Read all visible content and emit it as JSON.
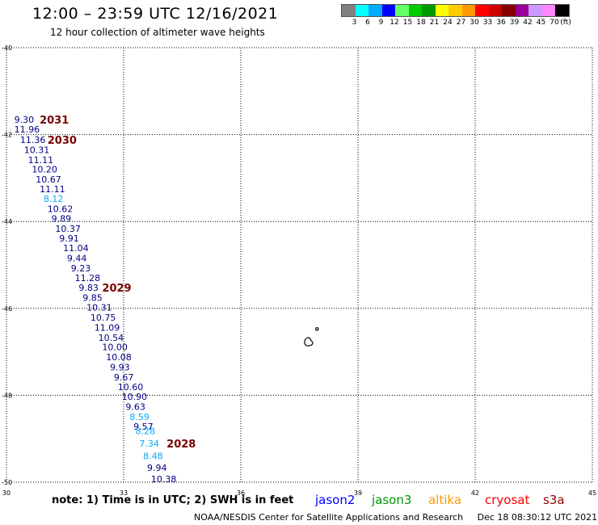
{
  "header": {
    "title": "12:00 – 23:59 UTC 12/16/2021",
    "subtitle": "12 hour collection of altimeter wave heights"
  },
  "color_scale": {
    "unit": "(ft)",
    "colors": [
      "#808080",
      "#00ffff",
      "#00aaff",
      "#0000ff",
      "#66ff66",
      "#00cc00",
      "#009900",
      "#ffff00",
      "#ffcc00",
      "#ff9900",
      "#ff0000",
      "#cc0000",
      "#880000",
      "#990099",
      "#cc99ff",
      "#ff88ff",
      "#000000"
    ],
    "labels": [
      "3",
      "6",
      "9",
      "12",
      "15",
      "18",
      "21",
      "24",
      "27",
      "30",
      "33",
      "36",
      "39",
      "42",
      "45",
      "70"
    ]
  },
  "map": {
    "lat_labels": [
      "-40",
      "-42",
      "-44",
      "-46",
      "-48",
      "-50"
    ],
    "lon_labels": [
      "30",
      "33",
      "36",
      "39",
      "42",
      "45"
    ],
    "pass_times": [
      "2031",
      "2030",
      "2029",
      "2028"
    ]
  },
  "chart_data": {
    "type": "scatter",
    "title": "12:00 – 23:59 UTC 12/16/2021",
    "subtitle": "12 hour collection of altimeter wave heights",
    "xlim": [
      30,
      45
    ],
    "ylim": [
      -50,
      -40
    ],
    "xticks": [
      30,
      33,
      36,
      39,
      42,
      45
    ],
    "yticks": [
      -40,
      -42,
      -44,
      -46,
      -48,
      -50
    ],
    "grid": true,
    "series": [
      {
        "name": "jason2",
        "points": [
          {
            "lon": 30.2,
            "lat": -41.65,
            "swh": "9.30",
            "color": "#000080"
          },
          {
            "lon": 30.2,
            "lat": -41.88,
            "swh": "11.96",
            "color": "#000080"
          },
          {
            "lon": 30.35,
            "lat": -42.12,
            "swh": "11.36",
            "color": "#000080"
          },
          {
            "lon": 30.45,
            "lat": -42.35,
            "swh": "10.31",
            "color": "#000080"
          },
          {
            "lon": 30.55,
            "lat": -42.58,
            "swh": "11.11",
            "color": "#000080"
          },
          {
            "lon": 30.65,
            "lat": -42.8,
            "swh": "10.20",
            "color": "#000080"
          },
          {
            "lon": 30.75,
            "lat": -43.03,
            "swh": "10.67",
            "color": "#000080"
          },
          {
            "lon": 30.85,
            "lat": -43.25,
            "swh": "11.11",
            "color": "#000080"
          },
          {
            "lon": 30.95,
            "lat": -43.48,
            "swh": "8.12",
            "color": "#00aaff"
          },
          {
            "lon": 31.05,
            "lat": -43.71,
            "swh": "10.62",
            "color": "#000080"
          },
          {
            "lon": 31.15,
            "lat": -43.93,
            "swh": "9.89",
            "color": "#000080"
          },
          {
            "lon": 31.25,
            "lat": -44.16,
            "swh": "10.37",
            "color": "#000080"
          },
          {
            "lon": 31.35,
            "lat": -44.39,
            "swh": "9.91",
            "color": "#000080"
          },
          {
            "lon": 31.45,
            "lat": -44.61,
            "swh": "11.04",
            "color": "#000080"
          },
          {
            "lon": 31.55,
            "lat": -44.84,
            "swh": "9.44",
            "color": "#000080"
          },
          {
            "lon": 31.65,
            "lat": -45.07,
            "swh": "9.23",
            "color": "#000080"
          },
          {
            "lon": 31.75,
            "lat": -45.3,
            "swh": "11.28",
            "color": "#000080"
          },
          {
            "lon": 31.85,
            "lat": -45.52,
            "swh": "9.83",
            "color": "#000080"
          },
          {
            "lon": 31.95,
            "lat": -45.75,
            "swh": "9.85",
            "color": "#000080"
          },
          {
            "lon": 32.05,
            "lat": -45.98,
            "swh": "10.31",
            "color": "#000080"
          },
          {
            "lon": 32.15,
            "lat": -46.21,
            "swh": "10.75",
            "color": "#000080"
          },
          {
            "lon": 32.25,
            "lat": -46.44,
            "swh": "11.09",
            "color": "#000080"
          },
          {
            "lon": 32.35,
            "lat": -46.67,
            "swh": "10.54",
            "color": "#000080"
          },
          {
            "lon": 32.45,
            "lat": -46.89,
            "swh": "10.00",
            "color": "#000080"
          },
          {
            "lon": 32.55,
            "lat": -47.12,
            "swh": "10.08",
            "color": "#000080"
          },
          {
            "lon": 32.65,
            "lat": -47.35,
            "swh": "9.93",
            "color": "#000080"
          },
          {
            "lon": 32.75,
            "lat": -47.58,
            "swh": "9.67",
            "color": "#000080"
          },
          {
            "lon": 32.85,
            "lat": -47.81,
            "swh": "10.60",
            "color": "#000080"
          },
          {
            "lon": 32.95,
            "lat": -48.03,
            "swh": "10.90",
            "color": "#000080"
          },
          {
            "lon": 33.05,
            "lat": -48.26,
            "swh": "9.63",
            "color": "#000080"
          },
          {
            "lon": 33.15,
            "lat": -48.49,
            "swh": "8.59",
            "color": "#00aaff"
          },
          {
            "lon": 33.25,
            "lat": -48.72,
            "swh": "9.57",
            "color": "#000080"
          },
          {
            "lon": 33.3,
            "lat": -48.82,
            "swh": "8.28",
            "color": "#00aaff"
          },
          {
            "lon": 33.4,
            "lat": -49.11,
            "swh": "7.34",
            "color": "#00aaff"
          },
          {
            "lon": 33.5,
            "lat": -49.4,
            "swh": "8.48",
            "color": "#00aaff"
          },
          {
            "lon": 33.6,
            "lat": -49.67,
            "swh": "9.94",
            "color": "#000080"
          },
          {
            "lon": 33.7,
            "lat": -49.93,
            "swh": "10.38",
            "color": "#000080"
          }
        ]
      }
    ],
    "annotations": [
      {
        "text": "2031",
        "lon": 30.85,
        "lat": -41.65
      },
      {
        "text": "2030",
        "lon": 31.05,
        "lat": -42.12
      },
      {
        "text": "2029",
        "lon": 32.45,
        "lat": -45.52
      },
      {
        "text": "2028",
        "lon": 34.1,
        "lat": -49.11
      }
    ]
  },
  "footer": {
    "note": "note: 1) Time is in UTC; 2) SWH is in feet",
    "satellites": [
      {
        "name": "jason2",
        "color": "#0000ff"
      },
      {
        "name": "jason3",
        "color": "#009900"
      },
      {
        "name": "altika",
        "color": "#ff9900"
      },
      {
        "name": "cryosat",
        "color": "#ff0000"
      },
      {
        "name": "s3a",
        "color": "#990000"
      }
    ],
    "credit": "NOAA/NESDIS Center for Satellite Applications and Research",
    "timestamp": "Dec 18 08:30:12 UTC 2021"
  }
}
